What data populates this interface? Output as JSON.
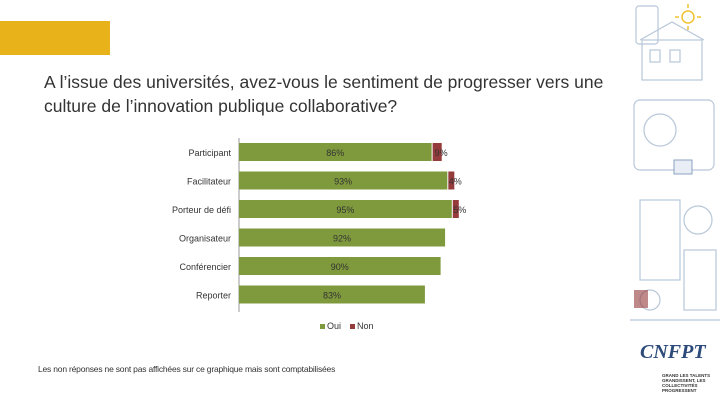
{
  "title": "A l’issue des universités, avez-vous le sentiment de progresser vers une culture de l’innovation publique collaborative?",
  "footnote": "Les non réponses ne sont pas affichées sur ce graphique mais sont comptabilisées",
  "colors": {
    "oui": "#7f9a3c",
    "non": "#953b3b",
    "accent": "#e8b21a",
    "axis": "#aaaaaa"
  },
  "logo": {
    "text": "CNFPT",
    "tagline": "GRAND LES TALENTS GRANDISSENT, LES COLLECTIVITÉS PROGRESSENT"
  },
  "chart_data": {
    "type": "bar",
    "orientation": "horizontal",
    "stacked": true,
    "categories": [
      "Participant",
      "Facilitateur",
      "Porteur de défi",
      "Organisateur",
      "Conférencier",
      "Reporter"
    ],
    "series": [
      {
        "name": "Oui",
        "values": [
          86,
          93,
          95,
          92,
          90,
          83
        ],
        "labels": [
          "86%",
          "93%",
          "95%",
          "92%",
          "90%",
          "83%"
        ]
      },
      {
        "name": "Non",
        "values": [
          9,
          4,
          5,
          0,
          0,
          0
        ],
        "labels": [
          "9%",
          "4%",
          "5%",
          "",
          "",
          ""
        ]
      }
    ],
    "xlim": [
      0,
      100
    ],
    "legend": [
      "Oui",
      "Non"
    ],
    "legend_position": "bottom"
  }
}
